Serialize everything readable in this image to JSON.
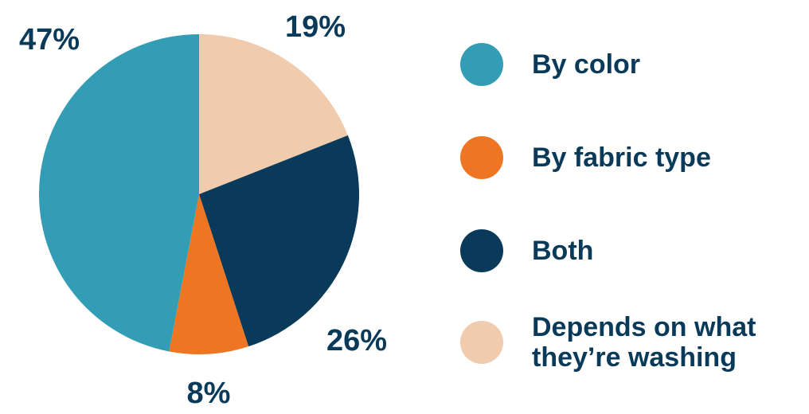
{
  "chart_data": {
    "type": "pie",
    "slices": [
      {
        "label": "By color",
        "value": 47,
        "display": "47%",
        "color": "#349db6"
      },
      {
        "label": "By fabric type",
        "value": 8,
        "display": "8%",
        "color": "#ee7623"
      },
      {
        "label": "Both",
        "value": 26,
        "display": "26%",
        "color": "#0a3a5a"
      },
      {
        "label": "Depends on what they’re washing",
        "value": 19,
        "display": "19%",
        "color": "#f0cbae"
      }
    ],
    "legend_position": "right"
  },
  "legend": {
    "items": [
      {
        "label": "By color",
        "color": "#349db6"
      },
      {
        "label": "By fabric type",
        "color": "#ee7623"
      },
      {
        "label": "Both",
        "color": "#0a3a5a"
      },
      {
        "label": "Depends on what\nthey’re washing",
        "color": "#f0cbae"
      }
    ]
  },
  "colors": {
    "text": "#0a3a5a"
  }
}
